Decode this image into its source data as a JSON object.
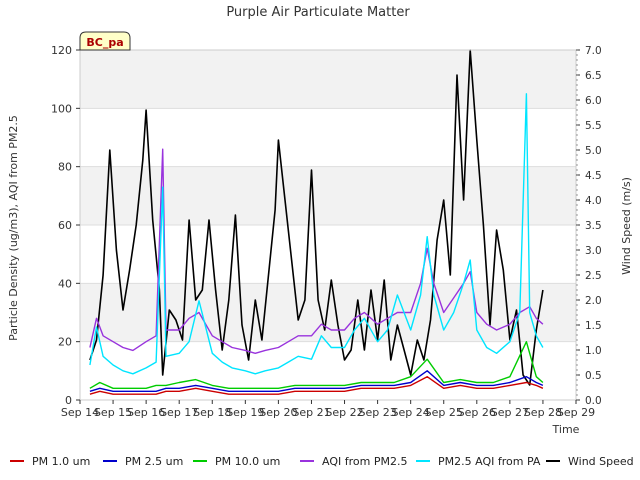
{
  "chart_data": {
    "type": "line",
    "title": "Purple Air Particulate Matter",
    "site_label": "BC_pa",
    "xlabel": "Time",
    "ylabel_left": "Particle Density (ug/m3), AQI from PM2.5",
    "ylabel_right": "Wind Speed (m/s)",
    "ylim_left": [
      0,
      120
    ],
    "ylim_right": [
      0,
      7.0
    ],
    "y_ticks_left": [
      "0",
      "20",
      "40",
      "60",
      "80",
      "100",
      "120"
    ],
    "y_ticks_right": [
      "0.0",
      "0.5",
      "1.0",
      "1.5",
      "2.0",
      "2.5",
      "3.0",
      "3.5",
      "4.0",
      "4.5",
      "5.0",
      "5.5",
      "6.0",
      "6.5",
      "7.0"
    ],
    "x_ticks": [
      "Sep 14",
      "Sep 15",
      "Sep 16",
      "Sep 17",
      "Sep 18",
      "Sep 19",
      "Sep 20",
      "Sep 21",
      "Sep 22",
      "Sep 23",
      "Sep 24",
      "Sep 25",
      "Sep 26",
      "Sep 27",
      "Sep 28",
      "Sep 29"
    ],
    "grid": true,
    "legend_position": "bottom",
    "series": [
      {
        "name": "PM 1.0 um",
        "color": "#cc0000",
        "axis": "left",
        "values": [
          [
            14.3,
            2
          ],
          [
            14.6,
            3
          ],
          [
            15.0,
            2
          ],
          [
            15.5,
            2
          ],
          [
            16.0,
            2
          ],
          [
            16.3,
            2
          ],
          [
            16.6,
            3
          ],
          [
            17.0,
            3
          ],
          [
            17.5,
            4
          ],
          [
            18.0,
            3
          ],
          [
            18.5,
            2
          ],
          [
            19.0,
            2
          ],
          [
            19.5,
            2
          ],
          [
            20.0,
            2
          ],
          [
            20.5,
            3
          ],
          [
            21.0,
            3
          ],
          [
            21.5,
            3
          ],
          [
            22.0,
            3
          ],
          [
            22.5,
            4
          ],
          [
            23.0,
            4
          ],
          [
            23.5,
            4
          ],
          [
            24.0,
            5
          ],
          [
            24.5,
            8
          ],
          [
            25.0,
            4
          ],
          [
            25.5,
            5
          ],
          [
            26.0,
            4
          ],
          [
            26.5,
            4
          ],
          [
            27.0,
            5
          ],
          [
            27.5,
            6
          ],
          [
            27.8,
            5
          ],
          [
            28.0,
            4
          ]
        ]
      },
      {
        "name": "PM 2.5 um",
        "color": "#0000cc",
        "axis": "left",
        "values": [
          [
            14.3,
            3
          ],
          [
            14.6,
            4
          ],
          [
            15.0,
            3
          ],
          [
            15.5,
            3
          ],
          [
            16.0,
            3
          ],
          [
            16.3,
            3
          ],
          [
            16.6,
            4
          ],
          [
            17.0,
            4
          ],
          [
            17.5,
            5
          ],
          [
            18.0,
            4
          ],
          [
            18.5,
            3
          ],
          [
            19.0,
            3
          ],
          [
            19.5,
            3
          ],
          [
            20.0,
            3
          ],
          [
            20.5,
            4
          ],
          [
            21.0,
            4
          ],
          [
            21.5,
            4
          ],
          [
            22.0,
            4
          ],
          [
            22.5,
            5
          ],
          [
            23.0,
            5
          ],
          [
            23.5,
            5
          ],
          [
            24.0,
            6
          ],
          [
            24.5,
            10
          ],
          [
            25.0,
            5
          ],
          [
            25.5,
            6
          ],
          [
            26.0,
            5
          ],
          [
            26.5,
            5
          ],
          [
            27.0,
            6
          ],
          [
            27.5,
            8
          ],
          [
            27.8,
            6
          ],
          [
            28.0,
            5
          ]
        ]
      },
      {
        "name": "PM 10.0 um",
        "color": "#00cc00",
        "axis": "left",
        "values": [
          [
            14.3,
            4
          ],
          [
            14.6,
            6
          ],
          [
            15.0,
            4
          ],
          [
            15.5,
            4
          ],
          [
            16.0,
            4
          ],
          [
            16.3,
            5
          ],
          [
            16.6,
            5
          ],
          [
            17.0,
            6
          ],
          [
            17.5,
            7
          ],
          [
            18.0,
            5
          ],
          [
            18.5,
            4
          ],
          [
            19.0,
            4
          ],
          [
            19.5,
            4
          ],
          [
            20.0,
            4
          ],
          [
            20.5,
            5
          ],
          [
            21.0,
            5
          ],
          [
            21.5,
            5
          ],
          [
            22.0,
            5
          ],
          [
            22.5,
            6
          ],
          [
            23.0,
            6
          ],
          [
            23.5,
            6
          ],
          [
            24.0,
            8
          ],
          [
            24.5,
            14
          ],
          [
            25.0,
            6
          ],
          [
            25.5,
            7
          ],
          [
            26.0,
            6
          ],
          [
            26.5,
            6
          ],
          [
            27.0,
            8
          ],
          [
            27.5,
            20
          ],
          [
            27.8,
            8
          ],
          [
            28.0,
            6
          ]
        ]
      },
      {
        "name": "AQI from PM2.5",
        "color": "#9933dd",
        "axis": "left",
        "values": [
          [
            14.3,
            18
          ],
          [
            14.5,
            28
          ],
          [
            14.7,
            22
          ],
          [
            15.0,
            20
          ],
          [
            15.3,
            18
          ],
          [
            15.6,
            17
          ],
          [
            16.0,
            20
          ],
          [
            16.3,
            22
          ],
          [
            16.5,
            86
          ],
          [
            16.6,
            24
          ],
          [
            17.0,
            24
          ],
          [
            17.3,
            28
          ],
          [
            17.6,
            30
          ],
          [
            18.0,
            22
          ],
          [
            18.3,
            20
          ],
          [
            18.6,
            18
          ],
          [
            19.0,
            17
          ],
          [
            19.3,
            16
          ],
          [
            19.6,
            17
          ],
          [
            20.0,
            18
          ],
          [
            20.3,
            20
          ],
          [
            20.6,
            22
          ],
          [
            21.0,
            22
          ],
          [
            21.3,
            26
          ],
          [
            21.6,
            24
          ],
          [
            22.0,
            24
          ],
          [
            22.3,
            28
          ],
          [
            22.6,
            30
          ],
          [
            23.0,
            26
          ],
          [
            23.3,
            28
          ],
          [
            23.6,
            30
          ],
          [
            24.0,
            30
          ],
          [
            24.3,
            40
          ],
          [
            24.5,
            52
          ],
          [
            24.7,
            40
          ],
          [
            25.0,
            30
          ],
          [
            25.3,
            35
          ],
          [
            25.6,
            40
          ],
          [
            25.8,
            44
          ],
          [
            26.0,
            30
          ],
          [
            26.3,
            26
          ],
          [
            26.6,
            24
          ],
          [
            27.0,
            26
          ],
          [
            27.3,
            30
          ],
          [
            27.6,
            32
          ],
          [
            27.8,
            28
          ],
          [
            28.0,
            26
          ]
        ]
      },
      {
        "name": "PM2.5 AQI from PA",
        "color": "#00e5ff",
        "axis": "left",
        "values": [
          [
            14.3,
            12
          ],
          [
            14.5,
            25
          ],
          [
            14.7,
            15
          ],
          [
            15.0,
            12
          ],
          [
            15.3,
            10
          ],
          [
            15.6,
            9
          ],
          [
            16.0,
            11
          ],
          [
            16.3,
            13
          ],
          [
            16.5,
            73
          ],
          [
            16.6,
            15
          ],
          [
            17.0,
            16
          ],
          [
            17.3,
            20
          ],
          [
            17.6,
            34
          ],
          [
            18.0,
            16
          ],
          [
            18.3,
            13
          ],
          [
            18.6,
            11
          ],
          [
            19.0,
            10
          ],
          [
            19.3,
            9
          ],
          [
            19.6,
            10
          ],
          [
            20.0,
            11
          ],
          [
            20.3,
            13
          ],
          [
            20.6,
            15
          ],
          [
            21.0,
            14
          ],
          [
            21.3,
            22
          ],
          [
            21.6,
            18
          ],
          [
            22.0,
            18
          ],
          [
            22.3,
            24
          ],
          [
            22.6,
            28
          ],
          [
            23.0,
            20
          ],
          [
            23.3,
            24
          ],
          [
            23.6,
            36
          ],
          [
            24.0,
            24
          ],
          [
            24.3,
            36
          ],
          [
            24.5,
            56
          ],
          [
            24.7,
            36
          ],
          [
            25.0,
            24
          ],
          [
            25.3,
            30
          ],
          [
            25.6,
            40
          ],
          [
            25.8,
            48
          ],
          [
            26.0,
            24
          ],
          [
            26.3,
            18
          ],
          [
            26.6,
            16
          ],
          [
            27.0,
            20
          ],
          [
            27.3,
            30
          ],
          [
            27.5,
            105
          ],
          [
            27.6,
            30
          ],
          [
            27.8,
            22
          ],
          [
            28.0,
            18
          ]
        ]
      },
      {
        "name": "Wind Speed",
        "color": "#000000",
        "axis": "right",
        "values": [
          [
            14.3,
            0.8
          ],
          [
            14.5,
            1.2
          ],
          [
            14.7,
            2.5
          ],
          [
            14.9,
            5.0
          ],
          [
            15.1,
            3.0
          ],
          [
            15.3,
            1.8
          ],
          [
            15.5,
            2.6
          ],
          [
            15.7,
            3.5
          ],
          [
            15.9,
            4.8
          ],
          [
            16.0,
            5.8
          ],
          [
            16.2,
            3.6
          ],
          [
            16.4,
            2.2
          ],
          [
            16.5,
            0.5
          ],
          [
            16.7,
            1.8
          ],
          [
            16.9,
            1.6
          ],
          [
            17.1,
            1.2
          ],
          [
            17.3,
            3.6
          ],
          [
            17.5,
            2.0
          ],
          [
            17.7,
            2.2
          ],
          [
            17.9,
            3.6
          ],
          [
            18.1,
            2.2
          ],
          [
            18.3,
            1.0
          ],
          [
            18.5,
            2.0
          ],
          [
            18.7,
            3.7
          ],
          [
            18.9,
            1.5
          ],
          [
            19.1,
            0.8
          ],
          [
            19.3,
            2.0
          ],
          [
            19.5,
            1.2
          ],
          [
            19.7,
            2.5
          ],
          [
            19.9,
            3.8
          ],
          [
            20.0,
            5.2
          ],
          [
            20.2,
            4.0
          ],
          [
            20.4,
            2.8
          ],
          [
            20.6,
            1.6
          ],
          [
            20.8,
            2.0
          ],
          [
            21.0,
            4.6
          ],
          [
            21.2,
            2.0
          ],
          [
            21.4,
            1.4
          ],
          [
            21.6,
            2.4
          ],
          [
            21.8,
            1.5
          ],
          [
            22.0,
            0.8
          ],
          [
            22.2,
            1.0
          ],
          [
            22.4,
            2.0
          ],
          [
            22.6,
            1.0
          ],
          [
            22.8,
            2.2
          ],
          [
            23.0,
            1.2
          ],
          [
            23.2,
            2.4
          ],
          [
            23.4,
            0.8
          ],
          [
            23.6,
            1.5
          ],
          [
            23.8,
            1.0
          ],
          [
            24.0,
            0.5
          ],
          [
            24.2,
            1.2
          ],
          [
            24.4,
            0.8
          ],
          [
            24.6,
            1.6
          ],
          [
            24.8,
            3.2
          ],
          [
            25.0,
            4.0
          ],
          [
            25.2,
            2.5
          ],
          [
            25.4,
            6.5
          ],
          [
            25.6,
            4.0
          ],
          [
            25.8,
            7.0
          ],
          [
            26.0,
            5.2
          ],
          [
            26.2,
            3.5
          ],
          [
            26.4,
            1.5
          ],
          [
            26.6,
            3.4
          ],
          [
            26.8,
            2.6
          ],
          [
            27.0,
            1.2
          ],
          [
            27.2,
            1.8
          ],
          [
            27.4,
            0.5
          ],
          [
            27.6,
            0.3
          ],
          [
            27.8,
            1.4
          ],
          [
            28.0,
            2.2
          ]
        ]
      }
    ]
  }
}
